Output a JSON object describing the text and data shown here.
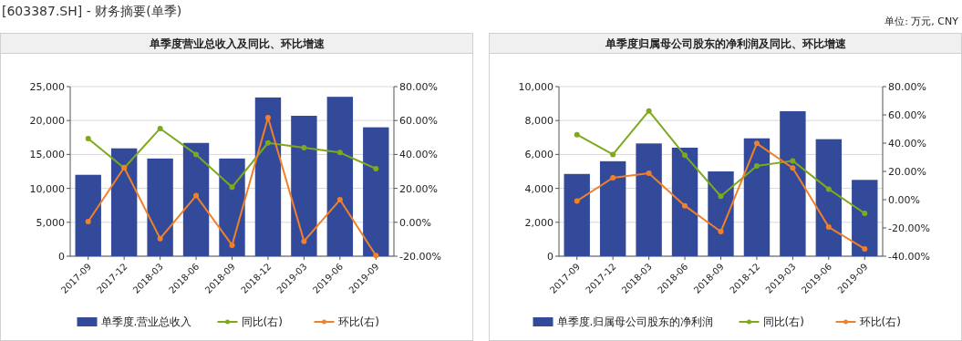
{
  "chart_data": [
    {
      "type": "bar",
      "title": "单季度营业总收入及同比、环比增速",
      "annotations": [
        "[603387.SH] - 财务摘要(单季)"
      ],
      "categories": [
        "2017-09",
        "2017-12",
        "2018-03",
        "2018-06",
        "2018-09",
        "2018-12",
        "2019-03",
        "2019-06",
        "2019-09"
      ],
      "series": [
        {
          "name": "单季度.营业总收入",
          "color": "#334a9a",
          "values": [
            12000,
            15900,
            14400,
            16700,
            14400,
            23400,
            20700,
            23500,
            19000
          ]
        },
        {
          "name": "同比(右)",
          "type": "line",
          "axis": "y2",
          "marker": "circle",
          "color": "#7fa91c",
          "values": [
            49.4,
            32.0,
            55.3,
            40.0,
            20.7,
            46.8,
            44.0,
            41.1,
            31.6
          ]
        },
        {
          "name": "环比(右)",
          "type": "line",
          "axis": "y2",
          "marker": "circle",
          "color": "#f0812a",
          "values": [
            0.4,
            32.3,
            -9.6,
            15.7,
            -13.5,
            61.7,
            -11.2,
            13.3,
            -19.6
          ]
        }
      ],
      "ylim": [
        0,
        25000
      ],
      "yticks": [
        0,
        {
          "value": 5000,
          "label": "5,000"
        },
        {
          "value": 10000,
          "label": "10,000"
        },
        {
          "value": 15000,
          "label": "15,000"
        },
        {
          "value": 20000,
          "label": "20,000"
        },
        {
          "value": 25000,
          "label": "25,000"
        }
      ],
      "y2lim": [
        -20,
        80
      ],
      "y2ticks": [
        {
          "value": -20,
          "label": "-20.00%"
        },
        {
          "value": 0,
          "label": "0.00%"
        },
        {
          "value": 20,
          "label": "20.00%"
        },
        {
          "value": 40,
          "label": "40.00%"
        },
        {
          "value": 60,
          "label": "60.00%"
        },
        {
          "value": 80,
          "label": "80.00%"
        }
      ],
      "grid": "y",
      "legend": "bottom"
    },
    {
      "type": "bar",
      "title": "单季度归属母公司股东的净利润及同比、环比增速",
      "annotations": [
        "单位: 万元, CNY"
      ],
      "categories": [
        "2017-09",
        "2017-12",
        "2018-03",
        "2018-06",
        "2018-09",
        "2018-12",
        "2019-03",
        "2019-06",
        "2019-09"
      ],
      "series": [
        {
          "name": "单季度.归属母公司股东的净利润",
          "color": "#334a9a",
          "values": [
            4850,
            5600,
            6650,
            6400,
            5000,
            6950,
            8550,
            6900,
            4500
          ]
        },
        {
          "name": "同比(右)",
          "type": "line",
          "axis": "y2",
          "marker": "circle",
          "color": "#7fa91c",
          "values": [
            46.0,
            32.0,
            62.8,
            31.4,
            2.4,
            23.9,
            27.5,
            7.5,
            -9.7
          ]
        },
        {
          "name": "环比(右)",
          "type": "line",
          "axis": "y2",
          "marker": "circle",
          "color": "#f0812a",
          "values": [
            -0.9,
            15.5,
            18.7,
            -4.3,
            -22.6,
            39.8,
            22.4,
            -19.4,
            -34.8
          ]
        }
      ],
      "ylim": [
        0,
        10000
      ],
      "yticks": [
        0,
        {
          "value": 2000,
          "label": "2,000"
        },
        {
          "value": 4000,
          "label": "4,000"
        },
        {
          "value": 6000,
          "label": "6,000"
        },
        {
          "value": 8000,
          "label": "8,000"
        },
        {
          "value": 10000,
          "label": "10,000"
        }
      ],
      "y2lim": [
        -40,
        80
      ],
      "y2ticks": [
        {
          "value": -40,
          "label": "-40.00%"
        },
        {
          "value": -20,
          "label": "-20.00%"
        },
        {
          "value": 0,
          "label": "0.00%"
        },
        {
          "value": 20,
          "label": "20.00%"
        },
        {
          "value": 40,
          "label": "40.00%"
        },
        {
          "value": 60,
          "label": "60.00%"
        },
        {
          "value": 80,
          "label": "80.00%"
        }
      ],
      "grid": "y",
      "legend": "bottom"
    }
  ]
}
